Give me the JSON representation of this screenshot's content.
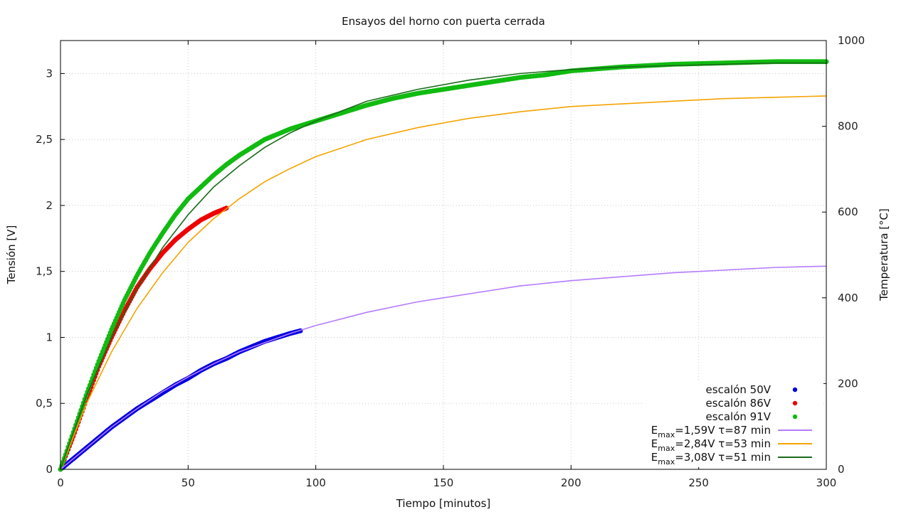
{
  "chart_data": {
    "type": "scatter",
    "title": "Ensayos del horno con puerta cerrada",
    "xlabel": "Tiempo [minutos]",
    "ylabel": "Tensión [V]",
    "y2label": "Temperatura [°C]",
    "xlim": [
      0,
      300
    ],
    "ylim": [
      0,
      3.25
    ],
    "y2lim": [
      0,
      1000
    ],
    "xticks": [
      0,
      50,
      100,
      150,
      200,
      250,
      300
    ],
    "xtick_labels": [
      "0",
      "50",
      "100",
      "150",
      "200",
      "250",
      "300"
    ],
    "yticks": [
      0,
      0.5,
      1,
      1.5,
      2,
      2.5,
      3
    ],
    "ytick_labels": [
      "0",
      "0,5",
      "1",
      "1,5",
      "2",
      "2,5",
      "3"
    ],
    "y2ticks": [
      0,
      200,
      400,
      600,
      800,
      1000
    ],
    "y2tick_labels": [
      "0",
      "200",
      "400",
      "600",
      "800",
      "1000"
    ],
    "grid": true,
    "legend_position": "bottom-right",
    "series": [
      {
        "name": "escalón 50V",
        "kind": "points",
        "color": "#0000dd",
        "x": [
          0,
          5,
          10,
          15,
          20,
          25,
          30,
          35,
          40,
          45,
          50,
          55,
          60,
          65,
          70,
          75,
          80,
          85,
          90,
          94
        ],
        "y": [
          0,
          0.08,
          0.16,
          0.24,
          0.32,
          0.39,
          0.46,
          0.52,
          0.58,
          0.64,
          0.69,
          0.75,
          0.8,
          0.84,
          0.89,
          0.93,
          0.97,
          1.0,
          1.03,
          1.05
        ]
      },
      {
        "name": "escalón 86V",
        "kind": "points",
        "color": "#ee0000",
        "x": [
          0,
          5,
          10,
          15,
          20,
          25,
          30,
          35,
          40,
          45,
          50,
          55,
          60,
          65
        ],
        "y": [
          0,
          0.25,
          0.52,
          0.78,
          1.0,
          1.2,
          1.38,
          1.52,
          1.64,
          1.74,
          1.82,
          1.89,
          1.94,
          1.98
        ]
      },
      {
        "name": "escalón 91V",
        "kind": "points",
        "color": "#11bb11",
        "x": [
          0,
          5,
          10,
          15,
          20,
          25,
          30,
          35,
          40,
          45,
          50,
          55,
          60,
          65,
          70,
          80,
          90,
          100,
          110,
          120,
          130,
          140,
          150,
          160,
          170,
          180,
          190,
          200,
          220,
          240,
          260,
          280,
          300
        ],
        "y": [
          0,
          0.28,
          0.56,
          0.82,
          1.06,
          1.28,
          1.47,
          1.64,
          1.79,
          1.93,
          2.05,
          2.14,
          2.23,
          2.31,
          2.38,
          2.5,
          2.58,
          2.64,
          2.7,
          2.76,
          2.81,
          2.85,
          2.88,
          2.91,
          2.94,
          2.97,
          2.99,
          3.02,
          3.05,
          3.07,
          3.08,
          3.09,
          3.09
        ]
      },
      {
        "name": "Emax=1,59V τ=87 min",
        "label_main": "E",
        "label_sub": "max",
        "label_rest": "=1,59V τ=87 min",
        "kind": "line",
        "color": "#b57bff",
        "x": [
          0,
          10,
          20,
          30,
          40,
          50,
          60,
          70,
          80,
          90,
          100,
          120,
          140,
          160,
          180,
          200,
          220,
          240,
          260,
          280,
          300
        ],
        "y": [
          0,
          0.16,
          0.32,
          0.46,
          0.59,
          0.7,
          0.8,
          0.89,
          0.96,
          1.03,
          1.09,
          1.19,
          1.27,
          1.33,
          1.39,
          1.43,
          1.46,
          1.49,
          1.51,
          1.53,
          1.54
        ]
      },
      {
        "name": "Emax=2,84V τ=53 min",
        "label_main": "E",
        "label_sub": "max",
        "label_rest": "=2,84V τ=53 min",
        "kind": "line",
        "color": "#f5a300",
        "x": [
          0,
          10,
          20,
          30,
          40,
          50,
          60,
          70,
          80,
          90,
          100,
          120,
          140,
          160,
          180,
          200,
          220,
          240,
          260,
          280,
          300
        ],
        "y": [
          0,
          0.49,
          0.89,
          1.22,
          1.49,
          1.72,
          1.9,
          2.05,
          2.18,
          2.28,
          2.37,
          2.5,
          2.59,
          2.66,
          2.71,
          2.75,
          2.77,
          2.79,
          2.81,
          2.82,
          2.83
        ]
      },
      {
        "name": "Emax=3,08V τ=51 min",
        "label_main": "E",
        "label_sub": "max",
        "label_rest": "=3,08V τ=51 min",
        "kind": "line",
        "color": "#1a6a1a",
        "x": [
          0,
          10,
          20,
          30,
          40,
          50,
          60,
          70,
          80,
          90,
          100,
          120,
          140,
          160,
          180,
          200,
          220,
          240,
          260,
          280,
          300
        ],
        "y": [
          0,
          0.55,
          1.0,
          1.37,
          1.68,
          1.93,
          2.14,
          2.3,
          2.44,
          2.55,
          2.64,
          2.79,
          2.88,
          2.95,
          3.0,
          3.03,
          3.05,
          3.06,
          3.07,
          3.08,
          3.08
        ]
      }
    ]
  }
}
